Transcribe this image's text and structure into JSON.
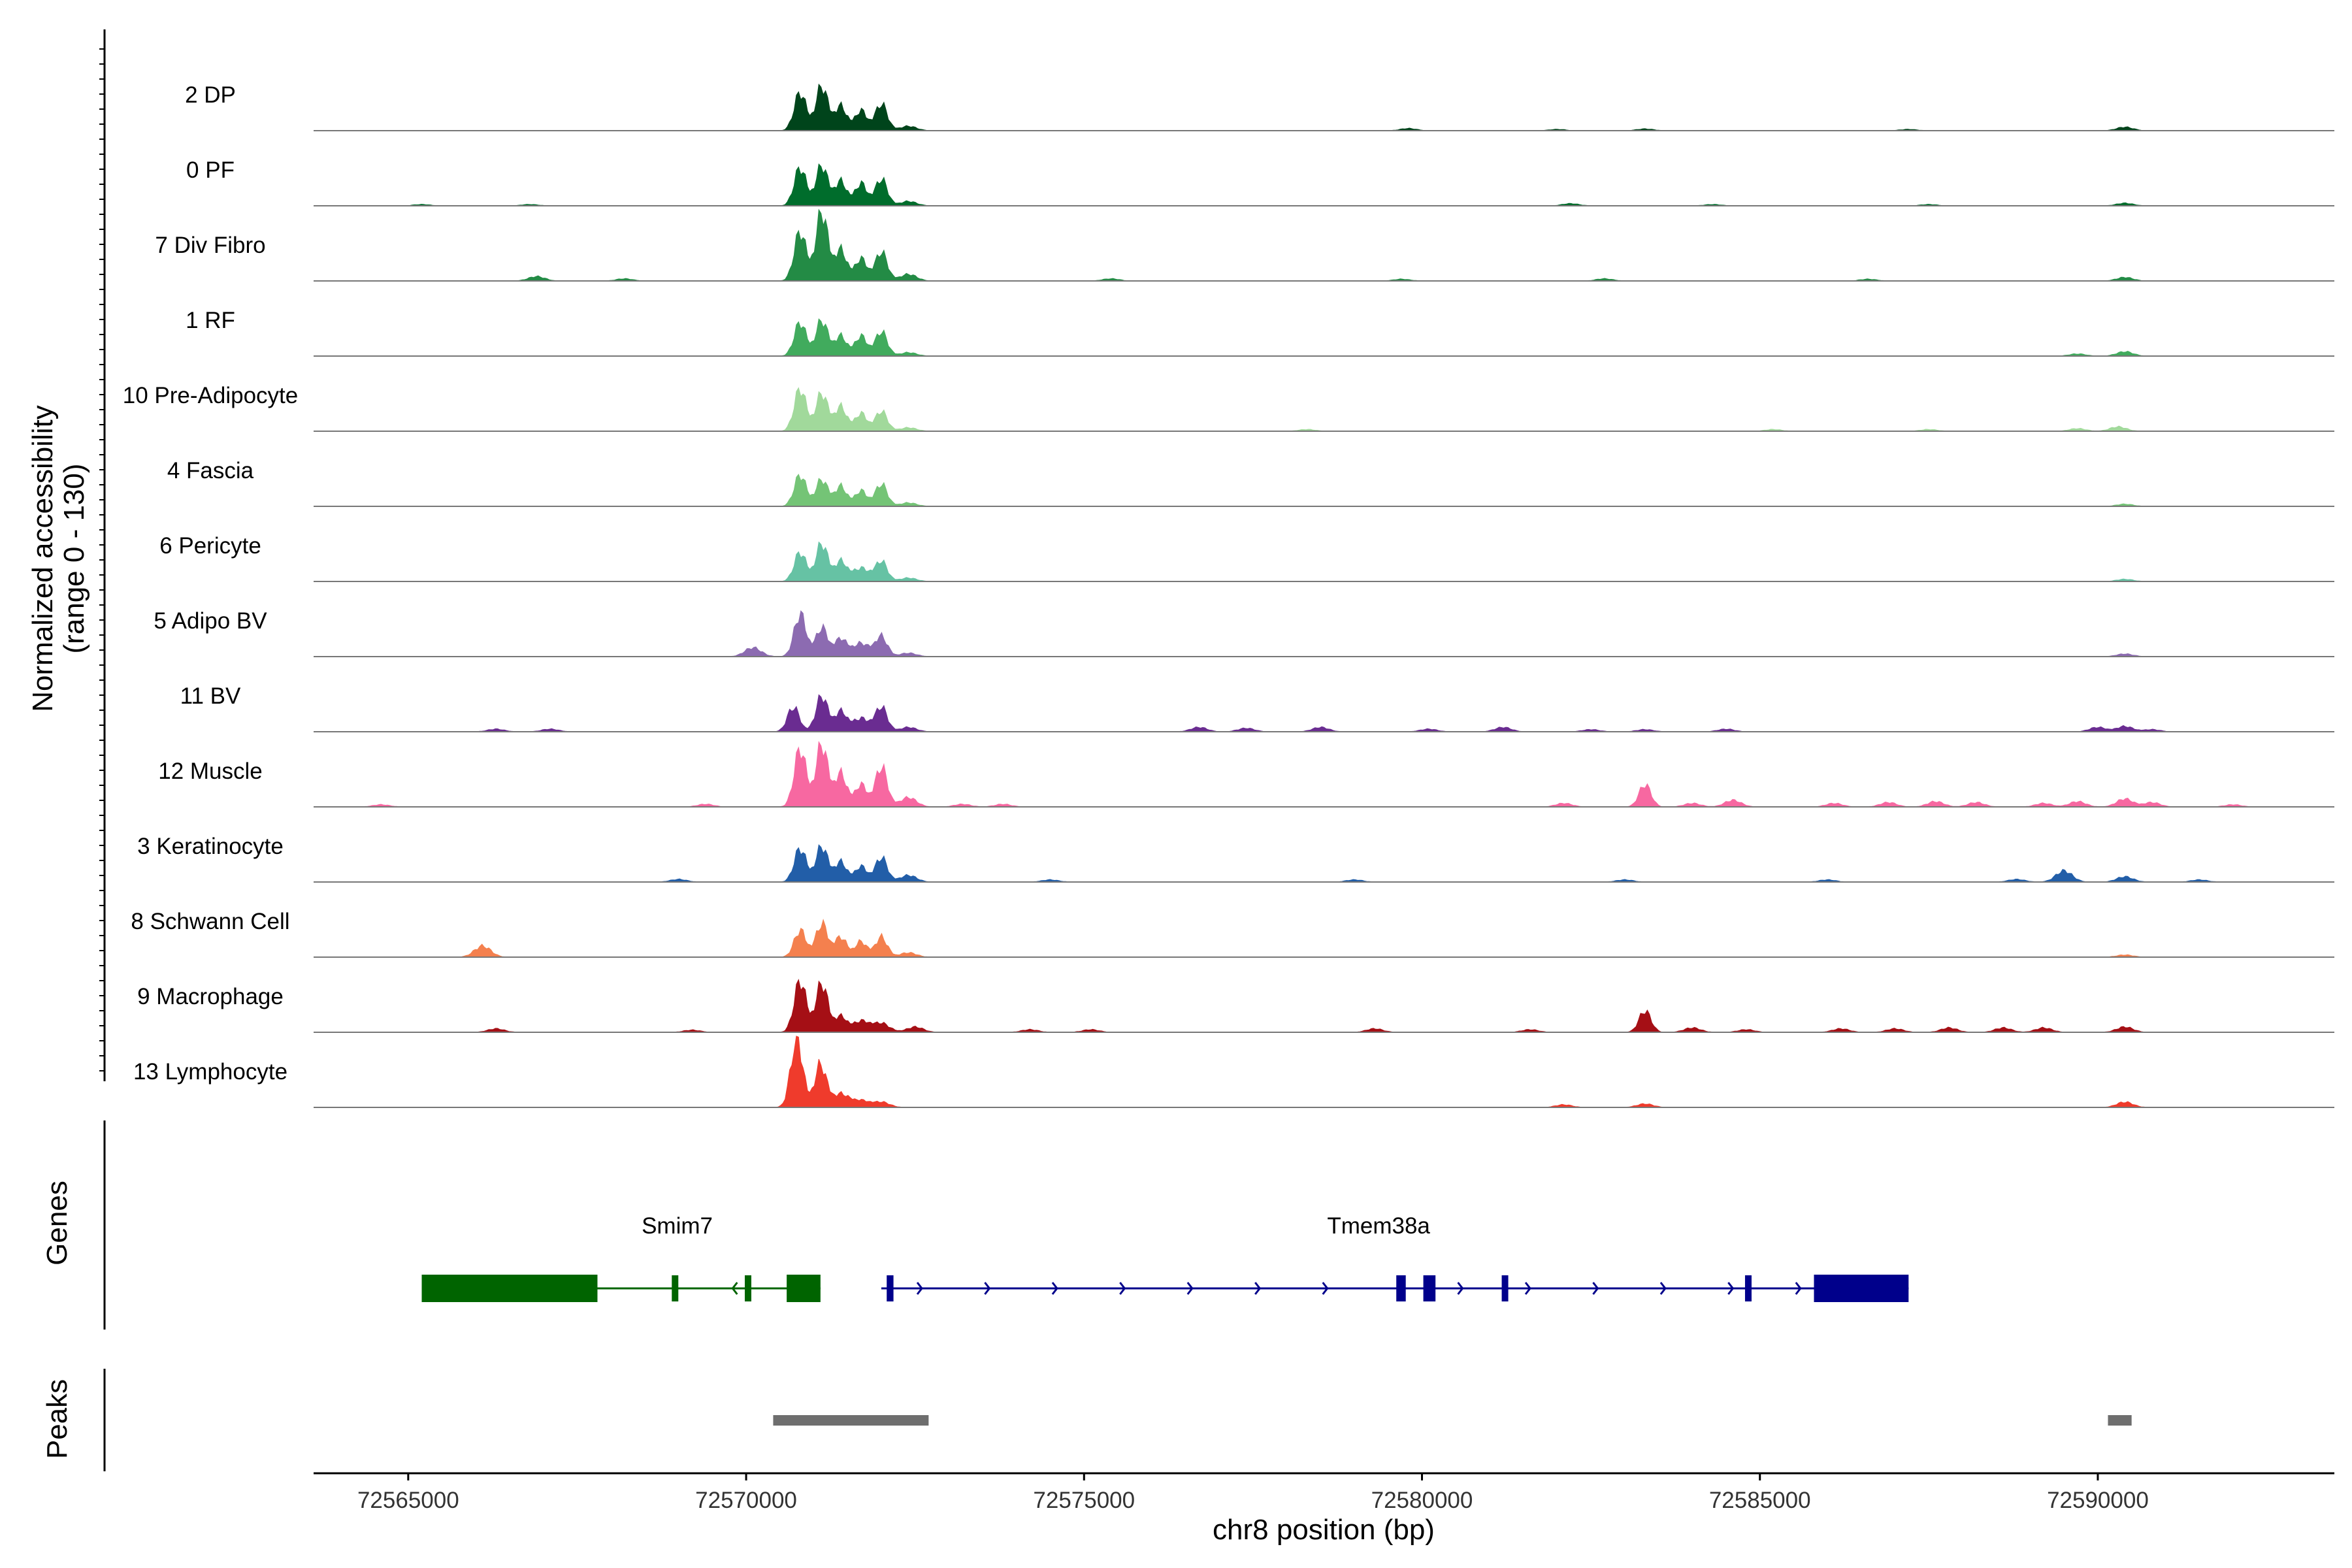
{
  "chart_data": {
    "type": "area",
    "title": "",
    "chromosome": "chr8",
    "xlabel": "chr8 position (bp)",
    "ylabel": "Normalized accessibility",
    "ylabel_range": "(range 0 - 130)",
    "y_range": [
      0,
      130
    ],
    "xlim": [
      72563600,
      72593500
    ],
    "x_ticks": [
      72565000,
      72570000,
      72575000,
      72580000,
      72585000,
      72590000
    ],
    "x_tick_labels": [
      "72565000",
      "72570000",
      "72575000",
      "72580000",
      "72585000",
      "72590000"
    ],
    "series": [
      {
        "name": "2 DP",
        "color": "#00441b",
        "peaks": [
          [
            72570800,
            85
          ],
          [
            72571120,
            100
          ],
          [
            72571400,
            55
          ],
          [
            72571700,
            45
          ],
          [
            72572000,
            60
          ],
          [
            72572400,
            10
          ],
          [
            72579800,
            5
          ],
          [
            72582000,
            3
          ],
          [
            72583300,
            4
          ],
          [
            72587200,
            3
          ],
          [
            72590400,
            8
          ]
        ]
      },
      {
        "name": "0 PF",
        "color": "#006d2c",
        "peaks": [
          [
            72570800,
            85
          ],
          [
            72571120,
            90
          ],
          [
            72571400,
            55
          ],
          [
            72571700,
            50
          ],
          [
            72572000,
            60
          ],
          [
            72572400,
            10
          ],
          [
            72565200,
            3
          ],
          [
            72566800,
            3
          ],
          [
            72582200,
            5
          ],
          [
            72584300,
            3
          ],
          [
            72587500,
            3
          ],
          [
            72590400,
            6
          ]
        ]
      },
      {
        "name": "7 Div Fibro",
        "color": "#238b45",
        "peaks": [
          [
            72570800,
            110
          ],
          [
            72571120,
            155
          ],
          [
            72571400,
            70
          ],
          [
            72571700,
            50
          ],
          [
            72572000,
            65
          ],
          [
            72572400,
            15
          ],
          [
            72566900,
            10
          ],
          [
            72568200,
            5
          ],
          [
            72575400,
            5
          ],
          [
            72579700,
            4
          ],
          [
            72582700,
            5
          ],
          [
            72586600,
            4
          ],
          [
            72590400,
            8
          ]
        ]
      },
      {
        "name": "1 RF",
        "color": "#41ab5d",
        "peaks": [
          [
            72570800,
            75
          ],
          [
            72571120,
            80
          ],
          [
            72571400,
            45
          ],
          [
            72571700,
            45
          ],
          [
            72572000,
            55
          ],
          [
            72572400,
            8
          ],
          [
            72589700,
            5
          ],
          [
            72590400,
            10
          ]
        ]
      },
      {
        "name": "10 Pre-Adipocyte",
        "color": "#a1d99b",
        "peaks": [
          [
            72570800,
            95
          ],
          [
            72571120,
            85
          ],
          [
            72571400,
            55
          ],
          [
            72571700,
            40
          ],
          [
            72572000,
            45
          ],
          [
            72572400,
            8
          ],
          [
            72578300,
            4
          ],
          [
            72585200,
            4
          ],
          [
            72587500,
            4
          ],
          [
            72589700,
            6
          ],
          [
            72590300,
            10
          ]
        ]
      },
      {
        "name": "4 Fascia",
        "color": "#74c476",
        "peaks": [
          [
            72570800,
            70
          ],
          [
            72571120,
            60
          ],
          [
            72571400,
            45
          ],
          [
            72571700,
            35
          ],
          [
            72572000,
            50
          ],
          [
            72572400,
            8
          ],
          [
            72590400,
            5
          ]
        ]
      },
      {
        "name": "6 Pericyte",
        "color": "#66c2a4",
        "peaks": [
          [
            72570800,
            65
          ],
          [
            72571120,
            85
          ],
          [
            72571400,
            45
          ],
          [
            72571700,
            30
          ],
          [
            72572000,
            45
          ],
          [
            72572400,
            8
          ],
          [
            72590400,
            5
          ]
        ]
      },
      {
        "name": "5 Adipo BV",
        "color": "#8c6bb1",
        "peaks": [
          [
            72570100,
            20
          ],
          [
            72570800,
            95
          ],
          [
            72571120,
            65
          ],
          [
            72571400,
            40
          ],
          [
            72571700,
            30
          ],
          [
            72572000,
            45
          ],
          [
            72572400,
            8
          ],
          [
            72590400,
            6
          ]
        ]
      },
      {
        "name": "11 BV",
        "color": "#6a2c91",
        "peaks": [
          [
            72570700,
            55
          ],
          [
            72571120,
            80
          ],
          [
            72571400,
            45
          ],
          [
            72571700,
            30
          ],
          [
            72572000,
            55
          ],
          [
            72572400,
            10
          ],
          [
            72566300,
            6
          ],
          [
            72567100,
            6
          ],
          [
            72576700,
            10
          ],
          [
            72577400,
            8
          ],
          [
            72578500,
            10
          ],
          [
            72580100,
            6
          ],
          [
            72581200,
            10
          ],
          [
            72582500,
            5
          ],
          [
            72583300,
            5
          ],
          [
            72584500,
            6
          ],
          [
            72590000,
            10
          ],
          [
            72590400,
            12
          ],
          [
            72590800,
            5
          ]
        ]
      },
      {
        "name": "12 Muscle",
        "color": "#f768a1",
        "peaks": [
          [
            72570800,
            130
          ],
          [
            72571120,
            140
          ],
          [
            72571400,
            75
          ],
          [
            72571700,
            50
          ],
          [
            72572000,
            90
          ],
          [
            72572400,
            15
          ],
          [
            72564600,
            5
          ],
          [
            72569400,
            6
          ],
          [
            72572400,
            6
          ],
          [
            72573200,
            6
          ],
          [
            72573800,
            6
          ],
          [
            72582100,
            8
          ],
          [
            72583300,
            50
          ],
          [
            72584000,
            8
          ],
          [
            72584600,
            15
          ],
          [
            72586100,
            8
          ],
          [
            72586900,
            10
          ],
          [
            72587600,
            12
          ],
          [
            72588200,
            10
          ],
          [
            72589200,
            8
          ],
          [
            72589700,
            12
          ],
          [
            72590400,
            18
          ],
          [
            72590800,
            10
          ],
          [
            72592000,
            5
          ]
        ]
      },
      {
        "name": "3 Keratinocyte",
        "color": "#225ea8",
        "peaks": [
          [
            72570800,
            75
          ],
          [
            72571120,
            80
          ],
          [
            72571400,
            45
          ],
          [
            72571700,
            35
          ],
          [
            72572000,
            55
          ],
          [
            72572400,
            15
          ],
          [
            72569000,
            6
          ],
          [
            72574500,
            5
          ],
          [
            72579000,
            5
          ],
          [
            72583000,
            5
          ],
          [
            72586000,
            5
          ],
          [
            72588800,
            6
          ],
          [
            72589500,
            25
          ],
          [
            72590400,
            12
          ],
          [
            72591500,
            5
          ]
        ]
      },
      {
        "name": "8 Schwann Cell",
        "color": "#f4804e",
        "peaks": [
          [
            72566100,
            25
          ],
          [
            72570800,
            60
          ],
          [
            72571120,
            75
          ],
          [
            72571400,
            45
          ],
          [
            72571700,
            35
          ],
          [
            72572000,
            45
          ],
          [
            72572400,
            10
          ],
          [
            72590400,
            5
          ]
        ]
      },
      {
        "name": "9 Macrophage",
        "color": "#a50f15",
        "peaks": [
          [
            72570800,
            115
          ],
          [
            72571120,
            110
          ],
          [
            72571400,
            35
          ],
          [
            72571700,
            25
          ],
          [
            72572000,
            20
          ],
          [
            72572500,
            12
          ],
          [
            72566300,
            8
          ],
          [
            72569200,
            5
          ],
          [
            72574200,
            6
          ],
          [
            72575100,
            6
          ],
          [
            72579300,
            8
          ],
          [
            72581600,
            6
          ],
          [
            72583300,
            48
          ],
          [
            72584000,
            10
          ],
          [
            72584800,
            6
          ],
          [
            72586200,
            8
          ],
          [
            72587000,
            8
          ],
          [
            72587800,
            10
          ],
          [
            72588600,
            10
          ],
          [
            72589200,
            10
          ],
          [
            72590400,
            12
          ]
        ]
      },
      {
        "name": "13 Lymphocyte",
        "color": "#ef3b2c",
        "peaks": [
          [
            72570750,
            155
          ],
          [
            72571100,
            95
          ],
          [
            72571400,
            30
          ],
          [
            72571700,
            15
          ],
          [
            72572000,
            12
          ],
          [
            72582100,
            6
          ],
          [
            72583300,
            8
          ],
          [
            72590400,
            12
          ]
        ]
      }
    ],
    "genes": [
      {
        "name": "Smim7",
        "strand": "-",
        "color": "#006400",
        "start": 72565200,
        "end": 72571100,
        "exons": [
          [
            72565200,
            72567800
          ],
          [
            72568900,
            72568960
          ],
          [
            72569980,
            72570010
          ],
          [
            72570600,
            72571100
          ]
        ]
      },
      {
        "name": "Tmem38a",
        "strand": "+",
        "color": "#00008b",
        "start": 72572000,
        "end": 72587200,
        "exons": [
          [
            72572080,
            72572180
          ],
          [
            72579620,
            72579760
          ],
          [
            72580020,
            72580200
          ],
          [
            72581180,
            72581260
          ],
          [
            72584780,
            72584870
          ],
          [
            72585800,
            72587200
          ]
        ]
      }
    ],
    "peaks_track": [
      [
        72570400,
        72572700
      ],
      [
        72590150,
        72590500
      ]
    ],
    "panel_labels": {
      "genes": "Genes",
      "peaks": "Peaks"
    }
  }
}
